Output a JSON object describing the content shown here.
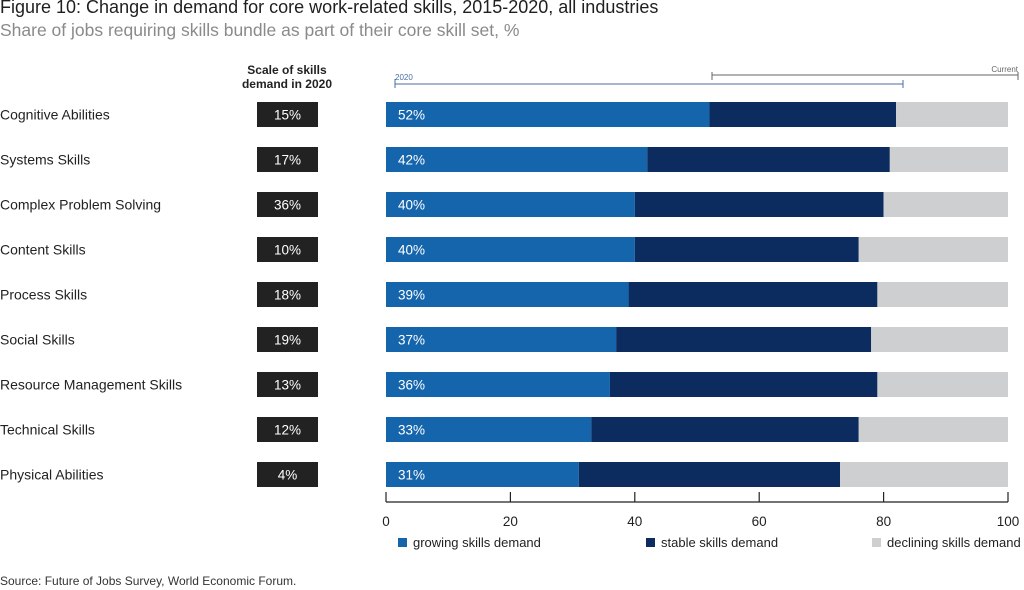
{
  "title": "Figure 10: Change in demand for core work-related skills, 2015-2020, all industries",
  "subtitle": "Share of jobs requiring skills bundle as part of their core skill set, %",
  "scale_header": "Scale of skills demand in 2020",
  "bracket_labels": {
    "start": "2020",
    "end": "Current"
  },
  "source": "Source: Future of Jobs Survey, World Economic Forum.",
  "colors": {
    "growing": "#1565ad",
    "stable": "#0c2b5e",
    "declining": "#cdcfd1",
    "scale_box": "#222222"
  },
  "chart_data": {
    "type": "bar",
    "orientation": "horizontal",
    "stacked": true,
    "categories": [
      "Cognitive Abilities",
      "Systems Skills",
      "Complex Problem Solving",
      "Content Skills",
      "Process Skills",
      "Social Skills",
      "Resource Management Skills",
      "Technical Skills",
      "Physical Abilities"
    ],
    "scale_of_demand": [
      "15%",
      "17%",
      "36%",
      "10%",
      "18%",
      "19%",
      "13%",
      "12%",
      "4%"
    ],
    "series": [
      {
        "name": "growing skills demand",
        "values": [
          52,
          42,
          40,
          40,
          39,
          37,
          36,
          33,
          31
        ]
      },
      {
        "name": "stable skills demand",
        "values": [
          30,
          39,
          40,
          36,
          40,
          41,
          43,
          43,
          42
        ]
      },
      {
        "name": "declining skills demand",
        "values": [
          18,
          19,
          20,
          24,
          21,
          22,
          21,
          24,
          27
        ]
      }
    ],
    "xlim": [
      0,
      100
    ],
    "xticks": [
      0,
      20,
      40,
      60,
      80,
      100
    ],
    "legend_position": "bottom"
  }
}
